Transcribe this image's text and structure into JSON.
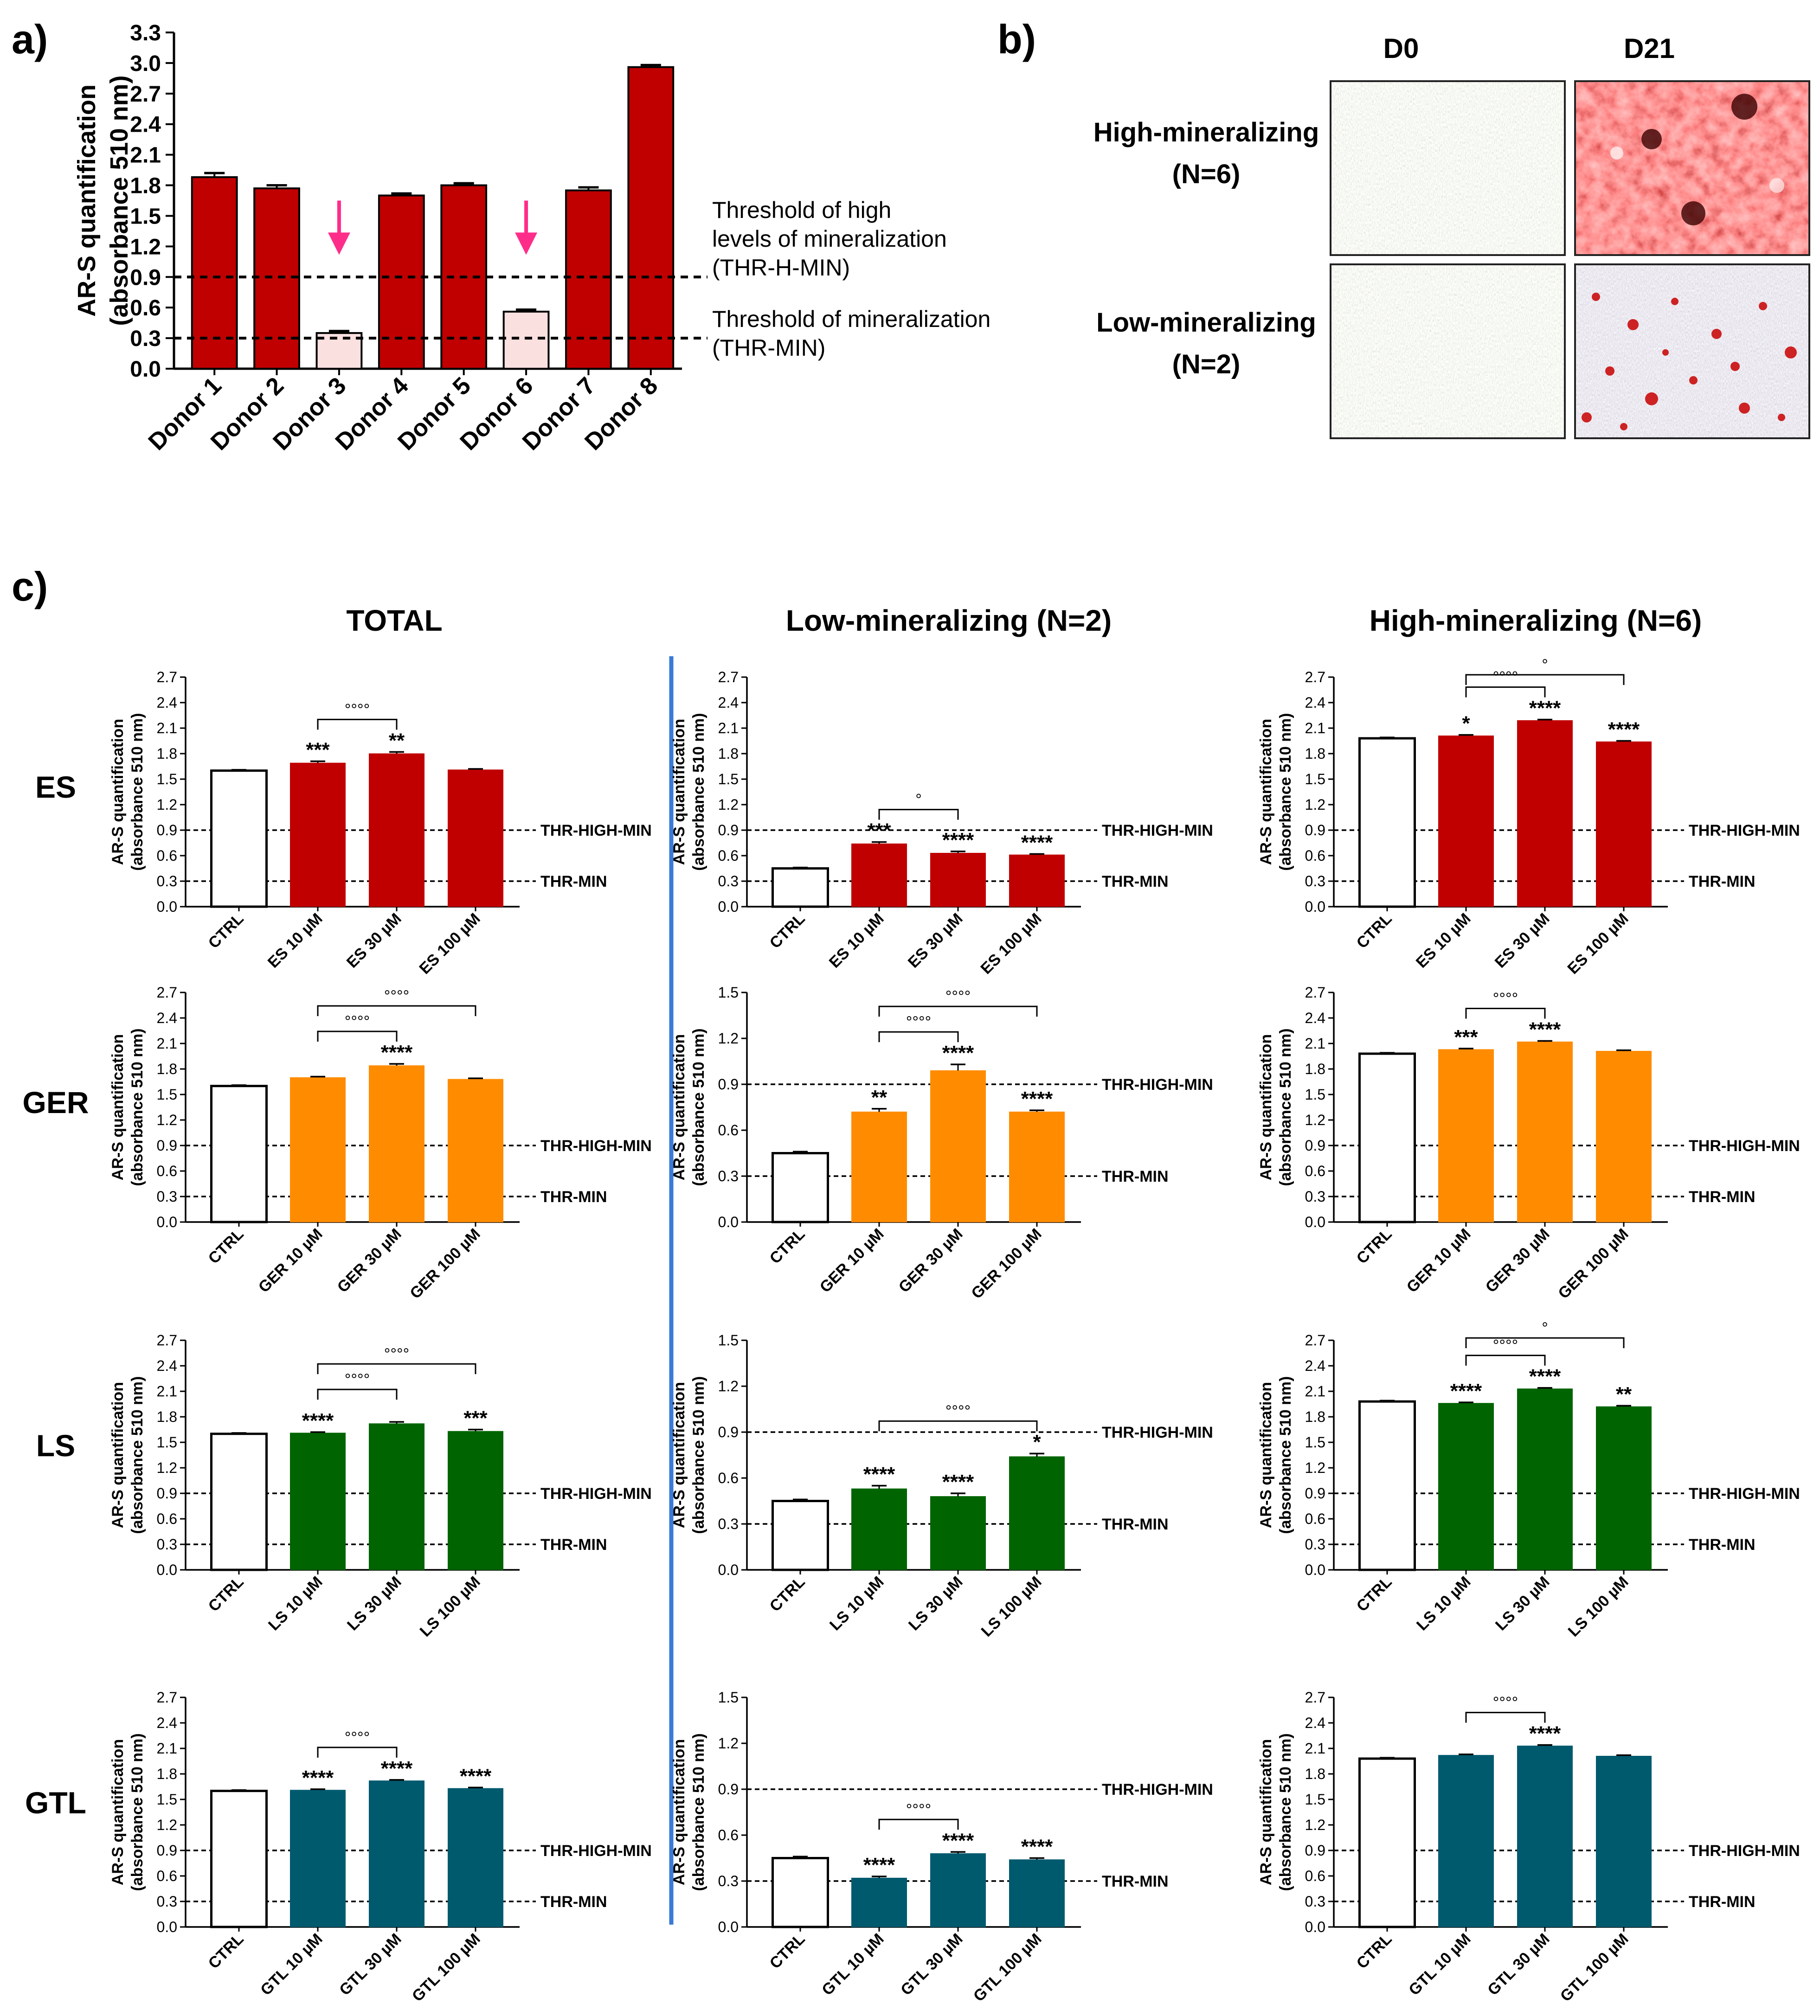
{
  "panel_labels": {
    "a": "a)",
    "b": "b)",
    "c": "c)"
  },
  "colors": {
    "high_red": "#c00000",
    "low_pink": "#fbe0e0",
    "arrow_pink": "#ff2d8a",
    "ES": "#c00000",
    "GER": "#ff8c00",
    "LS": "#006400",
    "GTL": "#005a6e",
    "divider": "#3a7bd5",
    "ctrl": "#ffffff"
  },
  "panel_a": {
    "ylabel": [
      "AR-S quantification",
      "(absorbance 510 nm)"
    ],
    "thresholds": [
      {
        "value": 0.9,
        "label_lines": [
          "Threshold of high",
          "levels of mineralization",
          "(THR-H-MIN)"
        ]
      },
      {
        "value": 0.3,
        "label_lines": [
          "Threshold of mineralization",
          "(THR-MIN)"
        ]
      }
    ]
  },
  "panel_b": {
    "col_headers": [
      "D0",
      "D21"
    ],
    "row_labels": [
      [
        "High-mineralizing",
        "(N=6)"
      ],
      [
        "Low-mineralizing",
        "(N=2)"
      ]
    ]
  },
  "panel_c": {
    "col_titles": [
      "TOTAL",
      "Low-mineralizing (N=2)",
      "High-mineralizing (N=6)"
    ],
    "row_labels": [
      "ES",
      "GER",
      "LS",
      "GTL"
    ],
    "ylabel": [
      "AR-S quantification",
      "(absorbance 510 nm)"
    ],
    "thr_labels": {
      "high": "THR-HIGH-MIN",
      "min": "THR-MIN"
    }
  },
  "chart_data": [
    {
      "id": "a",
      "type": "bar",
      "title": "",
      "xlabel": "",
      "ylabel": "AR-S quantification (absorbance 510 nm)",
      "ylim": [
        0,
        3.3
      ],
      "categories": [
        "Donor 1",
        "Donor 2",
        "Donor 3",
        "Donor 4",
        "Donor 5",
        "Donor 6",
        "Donor 7",
        "Donor 8"
      ],
      "values": [
        1.88,
        1.77,
        0.35,
        1.7,
        1.8,
        0.56,
        1.75,
        2.96
      ],
      "errors": [
        0.04,
        0.03,
        0.02,
        0.02,
        0.02,
        0.02,
        0.03,
        0.02
      ],
      "low_mineralizing": [
        false,
        false,
        true,
        false,
        false,
        true,
        false,
        false
      ],
      "arrows_on": [
        "Donor 3",
        "Donor 6"
      ],
      "thresholds": [
        0.9,
        0.3
      ]
    },
    {
      "id": "c-ES-total",
      "type": "bar",
      "ylim": [
        0,
        2.7
      ],
      "categories": [
        "CTRL",
        "ES 10 µM",
        "ES 30 µM",
        "ES 100 µM"
      ],
      "values": [
        1.6,
        1.69,
        1.8,
        1.61
      ],
      "errors": [
        0.01,
        0.02,
        0.02,
        0.01
      ],
      "stars": [
        "",
        "***",
        "**",
        ""
      ],
      "brackets": [
        {
          "from": 1,
          "to": 2,
          "label": "°°°°"
        }
      ]
    },
    {
      "id": "c-ES-low",
      "type": "bar",
      "ylim": [
        0,
        2.7
      ],
      "categories": [
        "CTRL",
        "ES 10 µM",
        "ES 30 µM",
        "ES 100 µM"
      ],
      "values": [
        0.45,
        0.74,
        0.63,
        0.61
      ],
      "errors": [
        0.01,
        0.02,
        0.02,
        0.01
      ],
      "stars": [
        "",
        "***",
        "****",
        "****"
      ],
      "brackets": [
        {
          "from": 1,
          "to": 2,
          "label": "°"
        }
      ]
    },
    {
      "id": "c-ES-high",
      "type": "bar",
      "ylim": [
        0,
        2.7
      ],
      "categories": [
        "CTRL",
        "ES 10 µM",
        "ES 30 µM",
        "ES 100 µM"
      ],
      "values": [
        1.98,
        2.01,
        2.19,
        1.94
      ],
      "errors": [
        0.01,
        0.01,
        0.01,
        0.01
      ],
      "stars": [
        "",
        "*",
        "****",
        "****"
      ],
      "brackets": [
        {
          "from": 1,
          "to": 2,
          "label": "°°°°"
        },
        {
          "from": 1,
          "to": 3,
          "label": "°"
        }
      ]
    },
    {
      "id": "c-GER-total",
      "type": "bar",
      "ylim": [
        0,
        2.7
      ],
      "categories": [
        "CTRL",
        "GER 10 µM",
        "GER 30 µM",
        "GER 100 µM"
      ],
      "values": [
        1.6,
        1.7,
        1.84,
        1.68
      ],
      "errors": [
        0.01,
        0.01,
        0.02,
        0.01
      ],
      "stars": [
        "",
        "",
        "****",
        ""
      ],
      "brackets": [
        {
          "from": 1,
          "to": 2,
          "label": "°°°°"
        },
        {
          "from": 1,
          "to": 3,
          "label": "°°°°"
        }
      ]
    },
    {
      "id": "c-GER-low",
      "type": "bar",
      "ylim": [
        0,
        1.5
      ],
      "categories": [
        "CTRL",
        "GER 10 µM",
        "GER 30 µM",
        "GER 100 µM"
      ],
      "values": [
        0.45,
        0.72,
        0.99,
        0.72
      ],
      "errors": [
        0.01,
        0.02,
        0.04,
        0.01
      ],
      "stars": [
        "",
        "**",
        "****",
        "****"
      ],
      "brackets": [
        {
          "from": 1,
          "to": 2,
          "label": "°°°°"
        },
        {
          "from": 1,
          "to": 3,
          "label": "°°°°"
        }
      ]
    },
    {
      "id": "c-GER-high",
      "type": "bar",
      "ylim": [
        0,
        2.7
      ],
      "categories": [
        "CTRL",
        "GER 10 µM",
        "GER 30 µM",
        "GER 100 µM"
      ],
      "values": [
        1.98,
        2.03,
        2.12,
        2.01
      ],
      "errors": [
        0.01,
        0.01,
        0.01,
        0.01
      ],
      "stars": [
        "",
        "***",
        "****",
        ""
      ],
      "brackets": [
        {
          "from": 1,
          "to": 2,
          "label": "°°°°"
        }
      ]
    },
    {
      "id": "c-LS-total",
      "type": "bar",
      "ylim": [
        0,
        2.7
      ],
      "categories": [
        "CTRL",
        "LS 10 µM",
        "LS 30 µM",
        "LS 100 µM"
      ],
      "values": [
        1.6,
        1.61,
        1.72,
        1.63
      ],
      "errors": [
        0.01,
        0.01,
        0.02,
        0.02
      ],
      "stars": [
        "",
        "****",
        "",
        "***"
      ],
      "brackets": [
        {
          "from": 1,
          "to": 2,
          "label": "°°°°"
        },
        {
          "from": 1,
          "to": 3,
          "label": "°°°°"
        }
      ]
    },
    {
      "id": "c-LS-low",
      "type": "bar",
      "ylim": [
        0,
        1.5
      ],
      "categories": [
        "CTRL",
        "LS 10 µM",
        "LS 30 µM",
        "LS 100 µM"
      ],
      "values": [
        0.45,
        0.53,
        0.48,
        0.74
      ],
      "errors": [
        0.01,
        0.02,
        0.02,
        0.02
      ],
      "stars": [
        "",
        "****",
        "****",
        "*"
      ],
      "brackets": [
        {
          "from": 1,
          "to": 3,
          "label": "°°°°"
        }
      ]
    },
    {
      "id": "c-LS-high",
      "type": "bar",
      "ylim": [
        0,
        2.7
      ],
      "categories": [
        "CTRL",
        "LS 10 µM",
        "LS 30 µM",
        "LS 100 µM"
      ],
      "values": [
        1.98,
        1.96,
        2.13,
        1.92
      ],
      "errors": [
        0.01,
        0.01,
        0.01,
        0.01
      ],
      "stars": [
        "",
        "****",
        "****",
        "**"
      ],
      "brackets": [
        {
          "from": 1,
          "to": 2,
          "label": "°°°°"
        },
        {
          "from": 1,
          "to": 3,
          "label": "°"
        }
      ]
    },
    {
      "id": "c-GTL-total",
      "type": "bar",
      "ylim": [
        0,
        2.7
      ],
      "categories": [
        "CTRL",
        "GTL 10 µM",
        "GTL 30 µM",
        "GTL 100 µM"
      ],
      "values": [
        1.6,
        1.61,
        1.72,
        1.63
      ],
      "errors": [
        0.01,
        0.01,
        0.01,
        0.01
      ],
      "stars": [
        "",
        "****",
        "****",
        "****"
      ],
      "brackets": [
        {
          "from": 1,
          "to": 2,
          "label": "°°°°"
        }
      ]
    },
    {
      "id": "c-GTL-low",
      "type": "bar",
      "ylim": [
        0,
        1.5
      ],
      "categories": [
        "CTRL",
        "GTL 10 µM",
        "GTL 30 µM",
        "GTL 100 µM"
      ],
      "values": [
        0.45,
        0.32,
        0.48,
        0.44
      ],
      "errors": [
        0.01,
        0.01,
        0.01,
        0.01
      ],
      "stars": [
        "",
        "****",
        "****",
        "****"
      ],
      "brackets": [
        {
          "from": 1,
          "to": 2,
          "label": "°°°°"
        }
      ]
    },
    {
      "id": "c-GTL-high",
      "type": "bar",
      "ylim": [
        0,
        2.7
      ],
      "categories": [
        "CTRL",
        "GTL 10 µM",
        "GTL 30 µM",
        "GTL 100 µM"
      ],
      "values": [
        1.98,
        2.02,
        2.13,
        2.01
      ],
      "errors": [
        0.01,
        0.01,
        0.01,
        0.01
      ],
      "stars": [
        "",
        "",
        "****",
        ""
      ],
      "brackets": [
        {
          "from": 1,
          "to": 2,
          "label": "°°°°"
        }
      ]
    }
  ]
}
